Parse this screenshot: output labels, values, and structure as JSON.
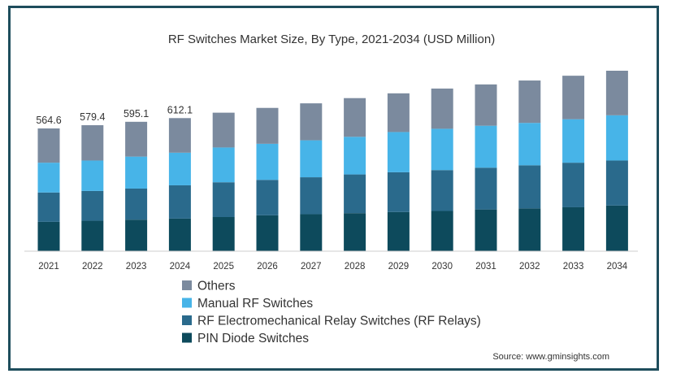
{
  "chart_data": {
    "type": "bar",
    "stacked": true,
    "title": "RF Switches Market Size, By Type, 2021-2034 (USD Million)",
    "categories": [
      "2021",
      "2022",
      "2023",
      "2024",
      "2025",
      "2026",
      "2027",
      "2028",
      "2029",
      "2030",
      "2031",
      "2032",
      "2033",
      "2034"
    ],
    "series": [
      {
        "name": "PIN Diode Switches",
        "color": "#0d4a5c",
        "values": [
          135,
          140,
          145,
          150,
          157,
          165,
          170,
          175,
          180,
          185,
          192,
          197,
          202,
          210
        ]
      },
      {
        "name": "RF Electromechanical Relay Switches (RF Relays)",
        "color": "#2a6a8c",
        "values": [
          135,
          137,
          143,
          153,
          160,
          163,
          170,
          178,
          183,
          188,
          192,
          198,
          205,
          207
        ]
      },
      {
        "name": "Manual RF Switches",
        "color": "#47b4e8",
        "values": [
          137,
          140,
          147,
          150,
          160,
          166,
          170,
          173,
          185,
          190,
          193,
          195,
          200,
          208
        ]
      },
      {
        "name": "Others",
        "color": "#7b8a9e",
        "values": [
          157.6,
          162.4,
          160.1,
          159.1,
          160,
          165,
          170,
          178,
          178,
          185,
          190,
          195,
          200,
          205
        ]
      }
    ],
    "totals": [
      564.6,
      579.4,
      595.1,
      612.1,
      637,
      659,
      680,
      704,
      726,
      748,
      767,
      785,
      807,
      830
    ],
    "data_labels": [
      "564.6",
      "579.4",
      "595.1",
      "612.1"
    ],
    "ylim": [
      0,
      830
    ],
    "legend_position": "bottom-left",
    "grid": false,
    "source": "Source: www.gminsights.com"
  }
}
